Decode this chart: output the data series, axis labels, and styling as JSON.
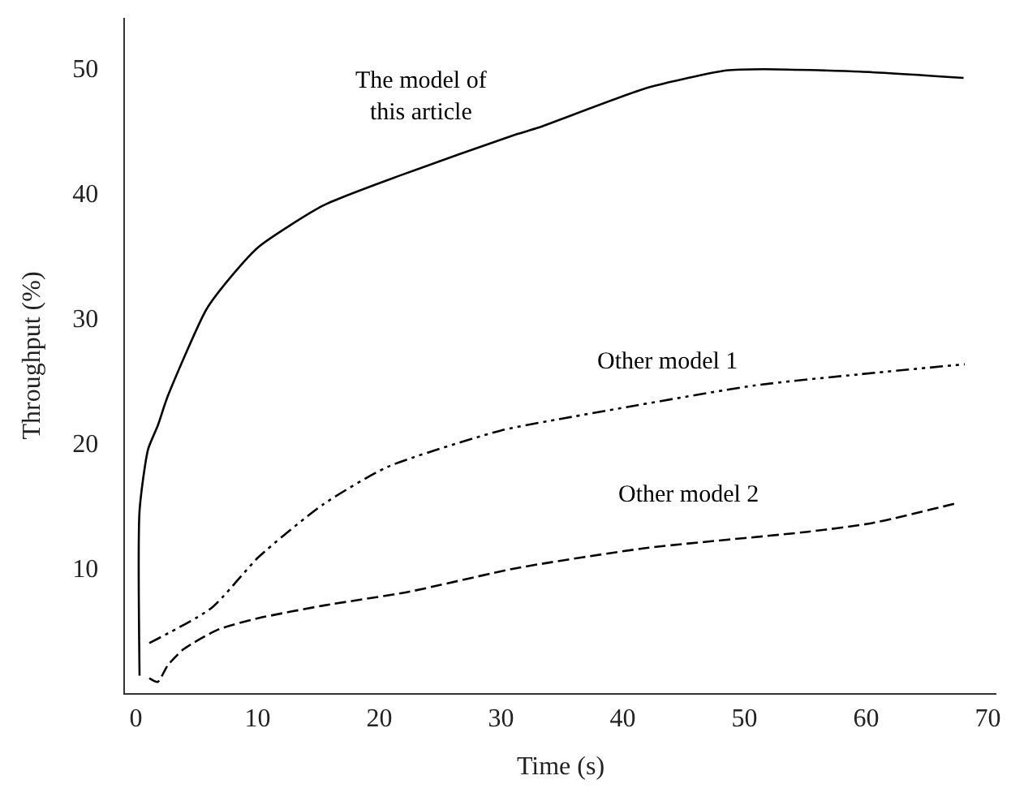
{
  "chart_data": {
    "type": "line",
    "xlabel": "Time (s)",
    "ylabel": "Throughput (%)",
    "xlim": [
      -0.9,
      70.7
    ],
    "ylim": [
      0,
      54
    ],
    "xticks": [
      0,
      10,
      20,
      30,
      40,
      50,
      60,
      70
    ],
    "yticks": [
      10,
      20,
      30,
      40,
      50
    ],
    "legend": false,
    "marker": "none",
    "series": [
      {
        "name": "The model of\nthis article",
        "color": "#000000",
        "line_style": "solid",
        "x": [
          0.3,
          0.3,
          1.0,
          1.8,
          2.6,
          5.8,
          7.9,
          10.1,
          15.4,
          22,
          31.3,
          33,
          42,
          48.5,
          51.6,
          59.5,
          68
        ],
        "values": [
          1.4,
          14.6,
          19.5,
          21.4,
          23.7,
          30.7,
          33.4,
          35.7,
          39,
          41.5,
          44.7,
          45.2,
          48.4,
          49.8,
          49.9,
          49.7,
          49.2
        ]
      },
      {
        "name": "Other model 1",
        "color": "#000000",
        "line_style": "dashdot",
        "x": [
          1.1,
          6.2,
          10.1,
          15.4,
          20.7,
          30,
          35.3,
          50.8,
          59.5,
          68.1
        ],
        "values": [
          4.0,
          6.8,
          10.9,
          15.1,
          18.1,
          21,
          22,
          24.6,
          25.5,
          26.3
        ]
      },
      {
        "name": "Other model 2",
        "color": "#000000",
        "line_style": "dashed",
        "x": [
          1.1,
          1.8,
          2.6,
          3.9,
          6.8,
          10.1,
          15.4,
          22.4,
          31.3,
          41.9,
          55.2,
          60.5,
          67.5
        ],
        "values": [
          1.2,
          0.9,
          2.2,
          3.5,
          5.1,
          6.0,
          7.0,
          8.1,
          10.0,
          11.6,
          12.9,
          13.6,
          15.2
        ]
      }
    ]
  }
}
